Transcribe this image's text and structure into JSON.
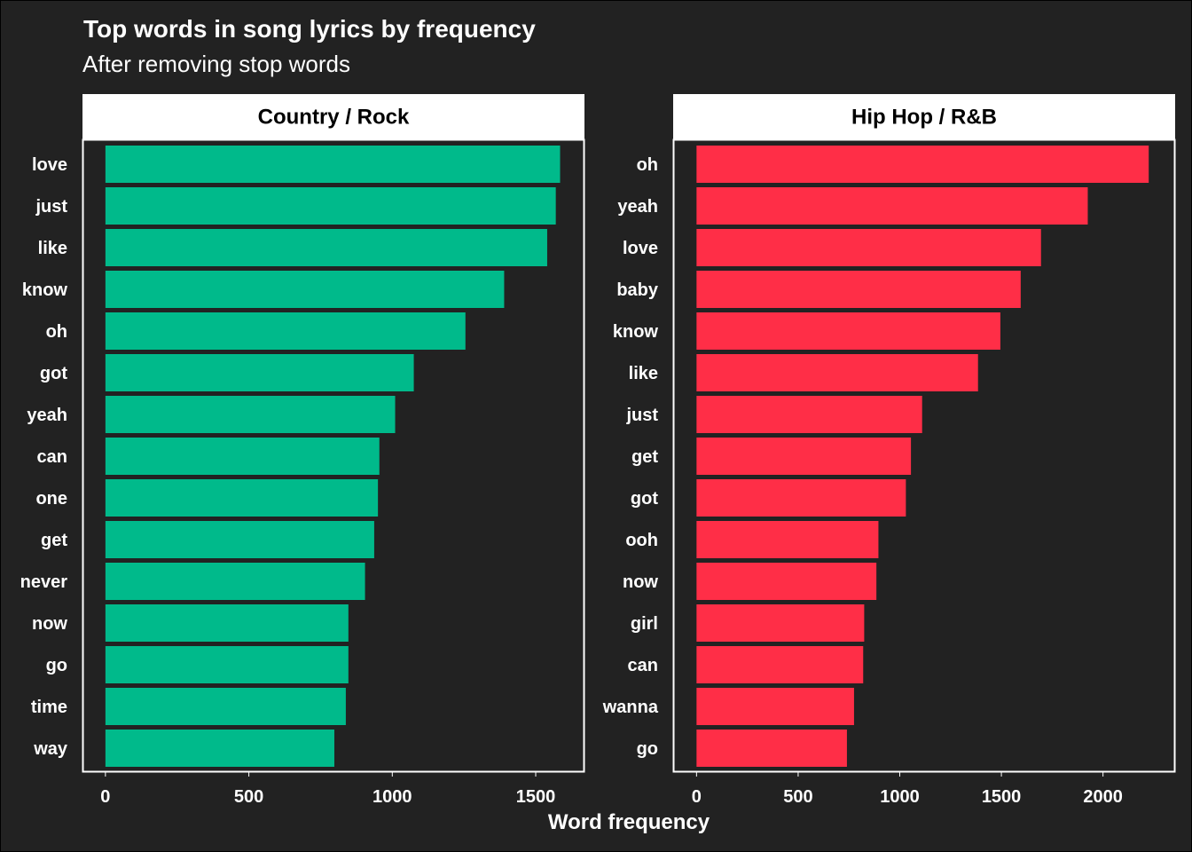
{
  "colors": {
    "background": "#222222",
    "text": "#ffffff",
    "strip_background": "#ffffff",
    "strip_text": "#000000",
    "panel_border": "#ffffff"
  },
  "chart_data": {
    "type": "bar",
    "orientation": "horizontal",
    "title": "Top words in song lyrics by frequency",
    "subtitle": "After removing stop words",
    "xlabel": "Word frequency",
    "ylabel": "",
    "grid": false,
    "legend": "none",
    "panels": [
      {
        "name": "Country / Rock",
        "color": "#00BA8B",
        "xlim": [
          -80,
          1670
        ],
        "xticks": [
          0,
          500,
          1000,
          1500
        ],
        "categories": [
          "love",
          "just",
          "like",
          "know",
          "oh",
          "got",
          "yeah",
          "can",
          "one",
          "get",
          "never",
          "now",
          "go",
          "time",
          "way"
        ],
        "values": [
          1585,
          1570,
          1540,
          1390,
          1255,
          1075,
          1010,
          955,
          950,
          937,
          905,
          847,
          847,
          838,
          798
        ]
      },
      {
        "name": "Hip Hop / R&B",
        "color": "#FF2E47",
        "xlim": [
          -115,
          2355
        ],
        "xticks": [
          0,
          500,
          1000,
          1500,
          2000
        ],
        "categories": [
          "oh",
          "yeah",
          "love",
          "baby",
          "know",
          "like",
          "just",
          "get",
          "got",
          "ooh",
          "now",
          "girl",
          "can",
          "wanna",
          "go"
        ],
        "values": [
          2225,
          1925,
          1695,
          1595,
          1495,
          1385,
          1110,
          1055,
          1030,
          895,
          885,
          825,
          820,
          775,
          740
        ]
      }
    ]
  }
}
